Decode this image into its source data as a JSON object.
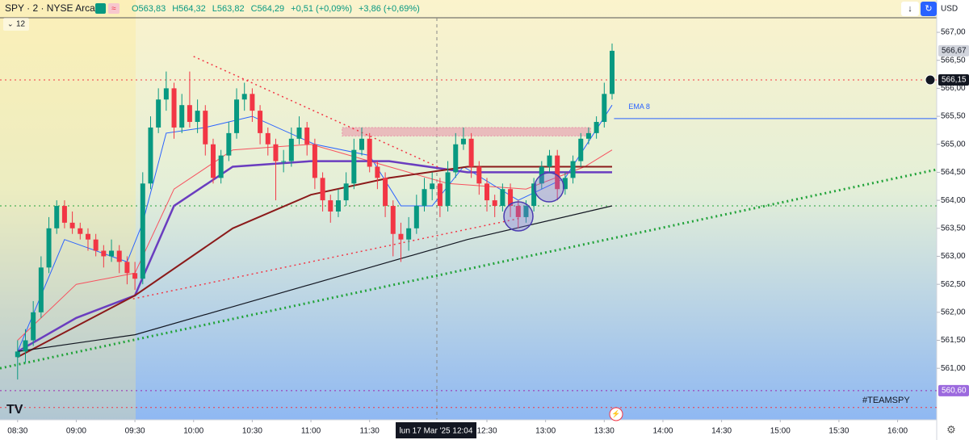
{
  "chart_data": {
    "type": "candlestick",
    "title": "SPY · 2 · NYSE Arca",
    "interval_input": "12",
    "ohlc_legend": [
      "O563,83",
      "H564,32",
      "L563,82",
      "C564,29",
      "+0,51 (+0,09%)",
      "+3,86 (+0,69%)"
    ],
    "currency": "USD",
    "annotation": "#TEAMSPY",
    "crosshair_label": "lun 17 Mar '25  12:04",
    "up_color": "#089981",
    "down_color": "#f23645",
    "grid": false,
    "xlim": [
      501,
      980
    ],
    "ylim": [
      560.08,
      567.26
    ],
    "xticks": [
      {
        "value": 510,
        "label": "08:30"
      },
      {
        "value": 540,
        "label": "09:00"
      },
      {
        "value": 570,
        "label": "09:30"
      },
      {
        "value": 600,
        "label": "10:00"
      },
      {
        "value": 630,
        "label": "10:30"
      },
      {
        "value": 660,
        "label": "11:00"
      },
      {
        "value": 690,
        "label": "11:30"
      },
      {
        "value": 750,
        "label": "12:30"
      },
      {
        "value": 780,
        "label": "13:00"
      },
      {
        "value": 810,
        "label": "13:30"
      },
      {
        "value": 840,
        "label": "14:00"
      },
      {
        "value": 870,
        "label": "14:30"
      },
      {
        "value": 900,
        "label": "15:00"
      },
      {
        "value": 930,
        "label": "15:30"
      },
      {
        "value": 960,
        "label": "16:00"
      }
    ],
    "yticks": [
      {
        "value": 561,
        "label": "561,00"
      },
      {
        "value": 561.5,
        "label": "561,50"
      },
      {
        "value": 562,
        "label": "562,00"
      },
      {
        "value": 562.5,
        "label": "562,50"
      },
      {
        "value": 563,
        "label": "563,00"
      },
      {
        "value": 563.5,
        "label": "563,50"
      },
      {
        "value": 564,
        "label": "564,00"
      },
      {
        "value": 564.5,
        "label": "564,50"
      },
      {
        "value": 565,
        "label": "565,00"
      },
      {
        "value": 565.5,
        "label": "565,50"
      },
      {
        "value": 566,
        "label": "566,00"
      },
      {
        "value": 566.5,
        "label": "566,50"
      },
      {
        "value": 567,
        "label": "567,00"
      }
    ],
    "x": [
      510,
      514,
      518,
      522,
      526,
      530,
      534,
      538,
      542,
      546,
      550,
      554,
      558,
      562,
      566,
      570,
      574,
      578,
      582,
      586,
      590,
      594,
      598,
      602,
      606,
      610,
      614,
      618,
      622,
      626,
      630,
      634,
      638,
      642,
      646,
      650,
      654,
      658,
      662,
      666,
      670,
      674,
      678,
      682,
      686,
      690,
      694,
      698,
      702,
      706,
      710,
      714,
      718,
      722,
      726,
      730,
      734,
      738,
      742,
      746,
      750,
      754,
      758,
      762,
      766,
      770,
      774,
      778,
      782,
      786,
      790,
      794,
      798,
      802,
      806,
      810,
      814
    ],
    "candles": [
      [
        561.2,
        561.5,
        560.8,
        561.3
      ],
      [
        561.3,
        561.7,
        561.1,
        561.5
      ],
      [
        561.5,
        562.2,
        561.4,
        562.0
      ],
      [
        562.0,
        563.0,
        561.9,
        562.8
      ],
      [
        562.8,
        563.7,
        562.7,
        563.5
      ],
      [
        563.5,
        564.0,
        563.4,
        563.9
      ],
      [
        563.9,
        564.0,
        563.5,
        563.6
      ],
      [
        563.6,
        563.8,
        563.4,
        563.5
      ],
      [
        563.5,
        563.6,
        563.3,
        563.4
      ],
      [
        563.4,
        563.5,
        563.1,
        563.3
      ],
      [
        563.3,
        563.4,
        563.0,
        563.1
      ],
      [
        563.1,
        563.2,
        562.8,
        563.0
      ],
      [
        563.0,
        563.3,
        562.9,
        563.1
      ],
      [
        563.1,
        563.2,
        562.7,
        562.9
      ],
      [
        562.9,
        563.0,
        562.5,
        562.7
      ],
      [
        562.7,
        562.9,
        562.4,
        562.6
      ],
      [
        562.6,
        564.5,
        562.5,
        564.3
      ],
      [
        564.3,
        565.5,
        564.2,
        565.3
      ],
      [
        565.3,
        566.0,
        565.2,
        565.8
      ],
      [
        565.8,
        566.3,
        565.6,
        566.0
      ],
      [
        566.0,
        566.1,
        565.1,
        565.3
      ],
      [
        565.3,
        565.9,
        565.2,
        565.7
      ],
      [
        565.7,
        566.3,
        565.3,
        565.4
      ],
      [
        565.4,
        565.8,
        565.2,
        565.6
      ],
      [
        565.6,
        565.7,
        564.8,
        565.0
      ],
      [
        565.0,
        565.1,
        564.3,
        564.4
      ],
      [
        564.4,
        564.9,
        564.3,
        564.8
      ],
      [
        564.8,
        565.4,
        564.7,
        565.2
      ],
      [
        565.2,
        566.0,
        565.1,
        565.8
      ],
      [
        565.8,
        566.1,
        565.6,
        565.9
      ],
      [
        565.9,
        566.0,
        565.4,
        565.6
      ],
      [
        565.6,
        565.7,
        565.0,
        565.2
      ],
      [
        565.2,
        565.3,
        564.8,
        565.0
      ],
      [
        565.0,
        565.1,
        564.0,
        564.7
      ],
      [
        564.7,
        564.9,
        564.5,
        564.7
      ],
      [
        564.7,
        565.3,
        564.6,
        565.1
      ],
      [
        565.1,
        565.5,
        565.0,
        565.3
      ],
      [
        565.3,
        565.4,
        564.8,
        565.0
      ],
      [
        565.0,
        565.1,
        564.2,
        564.4
      ],
      [
        564.4,
        564.5,
        563.8,
        564.0
      ],
      [
        564.0,
        564.1,
        563.6,
        563.8
      ],
      [
        563.8,
        564.2,
        563.7,
        564.0
      ],
      [
        564.0,
        564.5,
        563.9,
        564.3
      ],
      [
        564.3,
        565.1,
        564.2,
        564.9
      ],
      [
        564.9,
        565.3,
        564.8,
        565.1
      ],
      [
        565.1,
        565.2,
        564.5,
        564.6
      ],
      [
        564.6,
        564.7,
        564.2,
        564.4
      ],
      [
        564.4,
        564.5,
        563.7,
        563.9
      ],
      [
        563.9,
        564.0,
        563.0,
        563.4
      ],
      [
        563.4,
        563.6,
        562.9,
        563.3
      ],
      [
        563.3,
        563.7,
        563.1,
        563.5
      ],
      [
        563.5,
        564.1,
        563.4,
        563.9
      ],
      [
        563.9,
        564.4,
        563.8,
        564.2
      ],
      [
        564.2,
        564.5,
        564.0,
        564.3
      ],
      [
        564.3,
        564.4,
        563.7,
        563.9
      ],
      [
        563.9,
        564.7,
        563.8,
        564.5
      ],
      [
        564.5,
        565.2,
        564.4,
        565.0
      ],
      [
        565.0,
        565.3,
        564.9,
        565.1
      ],
      [
        565.1,
        565.2,
        564.4,
        564.6
      ],
      [
        564.6,
        564.7,
        564.1,
        564.3
      ],
      [
        564.3,
        564.4,
        563.8,
        564.0
      ],
      [
        564.0,
        564.1,
        563.7,
        563.9
      ],
      [
        563.9,
        564.3,
        563.8,
        564.2
      ],
      [
        564.2,
        564.3,
        563.7,
        563.9
      ],
      [
        563.9,
        564.0,
        563.5,
        563.7
      ],
      [
        563.7,
        564.0,
        563.6,
        563.9
      ],
      [
        563.9,
        564.4,
        563.8,
        564.3
      ],
      [
        564.3,
        564.7,
        564.2,
        564.6
      ],
      [
        564.6,
        564.9,
        564.5,
        564.8
      ],
      [
        564.8,
        564.9,
        564.0,
        564.2
      ],
      [
        564.2,
        564.5,
        564.1,
        564.4
      ],
      [
        564.4,
        564.8,
        564.3,
        564.7
      ],
      [
        564.7,
        565.2,
        564.6,
        565.1
      ],
      [
        565.1,
        565.3,
        565.0,
        565.2
      ],
      [
        565.2,
        565.5,
        565.1,
        565.4
      ],
      [
        565.4,
        566.1,
        565.3,
        565.9
      ],
      [
        565.9,
        566.8,
        565.8,
        566.67
      ]
    ],
    "overlays": [
      {
        "color": "#2962ff",
        "style": "solid",
        "width": 1,
        "x": [
          510,
          534,
          566,
          574,
          586,
          606,
          630,
          662,
          690,
          706,
          722,
          738,
          766,
          790,
          814
        ],
        "values": [
          561.3,
          563.3,
          562.9,
          563.6,
          565.2,
          565.3,
          565.5,
          565.0,
          564.8,
          563.9,
          563.9,
          564.6,
          564.0,
          564.4,
          565.7
        ]
      },
      {
        "color": "#f7525f",
        "style": "solid",
        "width": 1,
        "x": [
          510,
          540,
          570,
          590,
          620,
          660,
          700,
          730,
          770,
          800,
          814
        ],
        "values": [
          561.5,
          562.5,
          562.7,
          564.2,
          564.9,
          565.0,
          564.6,
          564.3,
          564.2,
          564.6,
          564.9
        ]
      },
      {
        "color": "#6a3dbf",
        "style": "solid",
        "width": 2.5,
        "x": [
          510,
          540,
          570,
          590,
          620,
          660,
          700,
          740,
          780,
          814
        ],
        "values": [
          561.3,
          561.9,
          562.3,
          563.9,
          564.6,
          564.7,
          564.7,
          564.5,
          564.5,
          564.5
        ]
      },
      {
        "color": "#8b1a1a",
        "style": "solid",
        "width": 2,
        "x": [
          510,
          570,
          620,
          660,
          700,
          740,
          814
        ],
        "values": [
          561.2,
          562.3,
          563.5,
          564.1,
          564.4,
          564.6,
          564.6
        ]
      },
      {
        "color": "#131722",
        "style": "solid",
        "width": 1.2,
        "x": [
          510,
          570,
          620,
          680,
          740,
          814
        ],
        "values": [
          561.3,
          561.6,
          562.1,
          562.7,
          563.3,
          563.9
        ]
      },
      {
        "color": "#22a33a",
        "style": "dotted",
        "width": 3,
        "x": [
          501,
          980
        ],
        "values": [
          561.0,
          564.55
        ]
      },
      {
        "color": "#f23645",
        "style": "dotted",
        "width": 1.5,
        "x": [
          600,
          726
        ],
        "values": [
          566.57,
          564.58
        ]
      },
      {
        "color": "#f23645",
        "style": "dotted",
        "width": 1.5,
        "x": [
          569,
          767
        ],
        "values": [
          562.24,
          563.68
        ]
      }
    ],
    "hlines": [
      {
        "value": 566.15,
        "color": "#f23645",
        "style": "dotted",
        "from": 501
      },
      {
        "value": 563.9,
        "color": "#22a33a",
        "style": "dotted",
        "from": 501
      },
      {
        "value": 560.6,
        "color": "#9c27b0",
        "style": "dotted",
        "from": 501
      },
      {
        "value": 560.3,
        "color": "#f23645",
        "style": "dotted",
        "from": 501
      },
      {
        "value": 565.46,
        "color": "#2962ff",
        "style": "solid",
        "from": 815,
        "label": "EMA 8"
      }
    ],
    "zones": [
      {
        "from": 676,
        "to": 803,
        "low": 565.15,
        "high": 565.3,
        "color": "#e891a8"
      }
    ],
    "price_labels": [
      {
        "value": 566.67,
        "label": "566,67",
        "color": "#d1d4dc",
        "text_color": "#131722"
      },
      {
        "value": 566.15,
        "label": "566,15",
        "color": "#131722",
        "text_color": "#ffffff"
      },
      {
        "value": 560.6,
        "label": "560,60",
        "color": "#9c6ade",
        "text_color": "#ffffff"
      }
    ]
  }
}
